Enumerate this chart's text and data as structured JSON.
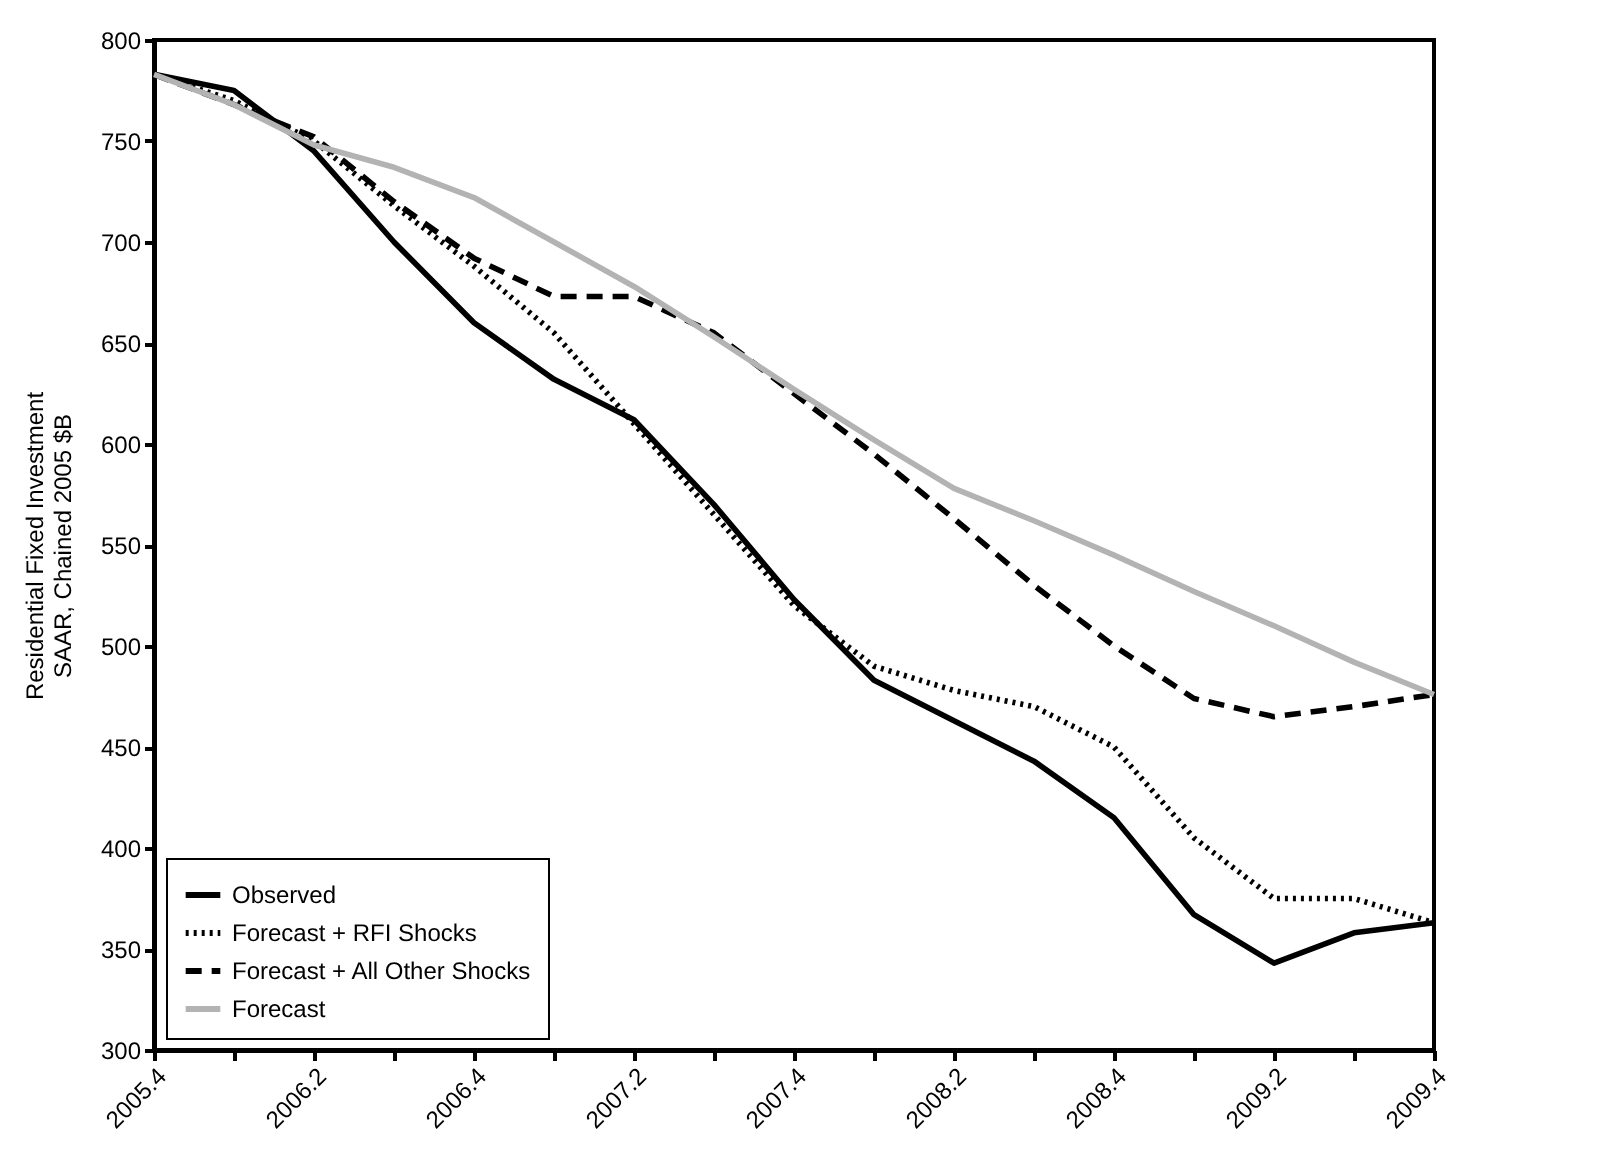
{
  "chart_data": {
    "type": "line",
    "ylabel": "Residential Fixed Investment\nSAAR, Chained 2005 $B",
    "categories": [
      "2005.4",
      null,
      "2006.2",
      null,
      "2006.4",
      null,
      "2007.2",
      null,
      "2007.4",
      null,
      "2008.2",
      null,
      "2008.4",
      null,
      "2009.2",
      null,
      "2009.4"
    ],
    "ylim": [
      300,
      800
    ],
    "yticks": [
      300,
      350,
      400,
      450,
      500,
      550,
      600,
      650,
      700,
      750,
      800
    ],
    "grid": false,
    "legend": "bottom left",
    "marker": "none",
    "series": [
      {
        "name": "Observed",
        "color": "#000000",
        "line_style": "solid",
        "values": [
          783,
          775,
          745,
          700,
          660,
          632,
          612,
          570,
          523,
          483,
          463,
          443,
          415,
          367,
          343,
          358,
          363
        ]
      },
      {
        "name": "Forecast + RFI Shocks",
        "color": "#000000",
        "line_style": "dotted",
        "values": [
          783,
          770,
          750,
          718,
          688,
          655,
          610,
          565,
          520,
          490,
          478,
          470,
          450,
          405,
          375,
          375,
          363
        ]
      },
      {
        "name": "Forecast + All Other Shocks",
        "color": "#000000",
        "line_style": "dashed",
        "values": [
          783,
          768,
          752,
          720,
          692,
          673,
          673,
          655,
          625,
          595,
          563,
          530,
          500,
          474,
          465,
          470,
          476
        ]
      },
      {
        "name": "Forecast",
        "color": "#b3b3b3",
        "line_style": "solid",
        "values": [
          783,
          768,
          748,
          737,
          722,
          700,
          678,
          653,
          627,
          602,
          578,
          562,
          545,
          527,
          510,
          492,
          476
        ]
      }
    ]
  }
}
